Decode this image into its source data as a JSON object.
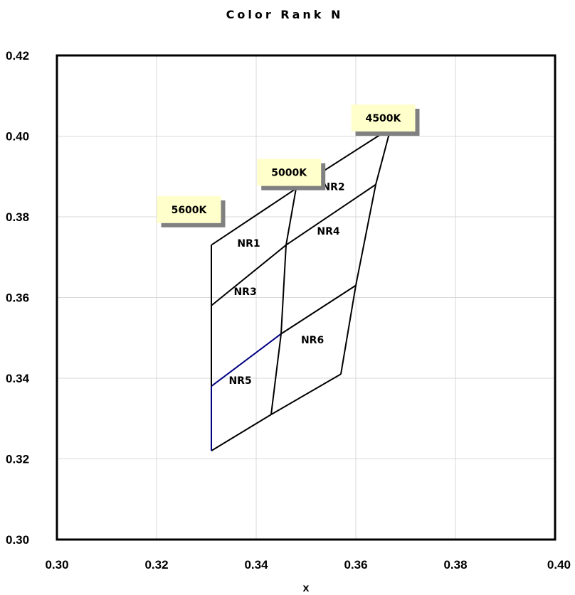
{
  "chart_data": {
    "type": "line",
    "title": "Color Rank   N",
    "xlabel": "x",
    "ylabel": "",
    "xlim": [
      0.3,
      0.4
    ],
    "ylim": [
      0.3,
      0.42
    ],
    "x_ticks": [
      "0.30",
      "0.32",
      "0.34",
      "0.36",
      "0.38",
      "0.40"
    ],
    "y_ticks": [
      "0.30",
      "0.32",
      "0.34",
      "0.36",
      "0.38",
      "0.40",
      "0.42"
    ],
    "grid": true,
    "colors": {
      "outline": "#000000",
      "nr5_edge": "#000080",
      "grid": "#d9d9d9",
      "callout_fill": "#ffffcc",
      "callout_shadow": "#808080"
    },
    "lines": [
      {
        "id": "top-edge",
        "color": "#000000",
        "points": [
          [
            0.331,
            0.373
          ],
          [
            0.348,
            0.387
          ],
          [
            0.367,
            0.402
          ]
        ]
      },
      {
        "id": "row1-divider",
        "color": "#000000",
        "points": [
          [
            0.331,
            0.358
          ],
          [
            0.346,
            0.373
          ],
          [
            0.364,
            0.388
          ]
        ]
      },
      {
        "id": "row2-divider-left",
        "color": "#000080",
        "points": [
          [
            0.331,
            0.338
          ],
          [
            0.345,
            0.351
          ]
        ]
      },
      {
        "id": "row2-divider-right",
        "color": "#000000",
        "points": [
          [
            0.345,
            0.351
          ],
          [
            0.36,
            0.363
          ]
        ]
      },
      {
        "id": "bottom-edge",
        "color": "#000000",
        "points": [
          [
            0.331,
            0.322
          ],
          [
            0.343,
            0.331
          ]
        ]
      },
      {
        "id": "bottom-right-edge",
        "color": "#000000",
        "points": [
          [
            0.343,
            0.331
          ],
          [
            0.357,
            0.341
          ]
        ]
      },
      {
        "id": "left-edge-upper",
        "color": "#000000",
        "points": [
          [
            0.331,
            0.373
          ],
          [
            0.331,
            0.338
          ]
        ]
      },
      {
        "id": "left-edge-lower",
        "color": "#000080",
        "points": [
          [
            0.331,
            0.338
          ],
          [
            0.331,
            0.322
          ]
        ]
      },
      {
        "id": "middle-edge",
        "color": "#000000",
        "points": [
          [
            0.348,
            0.387
          ],
          [
            0.346,
            0.373
          ],
          [
            0.345,
            0.351
          ],
          [
            0.343,
            0.331
          ]
        ]
      },
      {
        "id": "right-edge",
        "color": "#000000",
        "points": [
          [
            0.367,
            0.402
          ],
          [
            0.364,
            0.388
          ],
          [
            0.36,
            0.363
          ],
          [
            0.357,
            0.341
          ]
        ]
      }
    ],
    "regions": [
      {
        "label": "NR1",
        "x": 0.3385,
        "y": 0.3735
      },
      {
        "label": "NR2",
        "x": 0.3555,
        "y": 0.3875
      },
      {
        "label": "NR3",
        "x": 0.3378,
        "y": 0.3615
      },
      {
        "label": "NR4",
        "x": 0.3545,
        "y": 0.3765
      },
      {
        "label": "NR5",
        "x": 0.3368,
        "y": 0.3395
      },
      {
        "label": "NR6",
        "x": 0.3513,
        "y": 0.3495
      }
    ],
    "annotations": [
      {
        "label": "5600K",
        "x": 0.3265,
        "y": 0.3818
      },
      {
        "label": "5000K",
        "x": 0.3466,
        "y": 0.391
      },
      {
        "label": "4500K",
        "x": 0.3655,
        "y": 0.4045
      }
    ]
  }
}
